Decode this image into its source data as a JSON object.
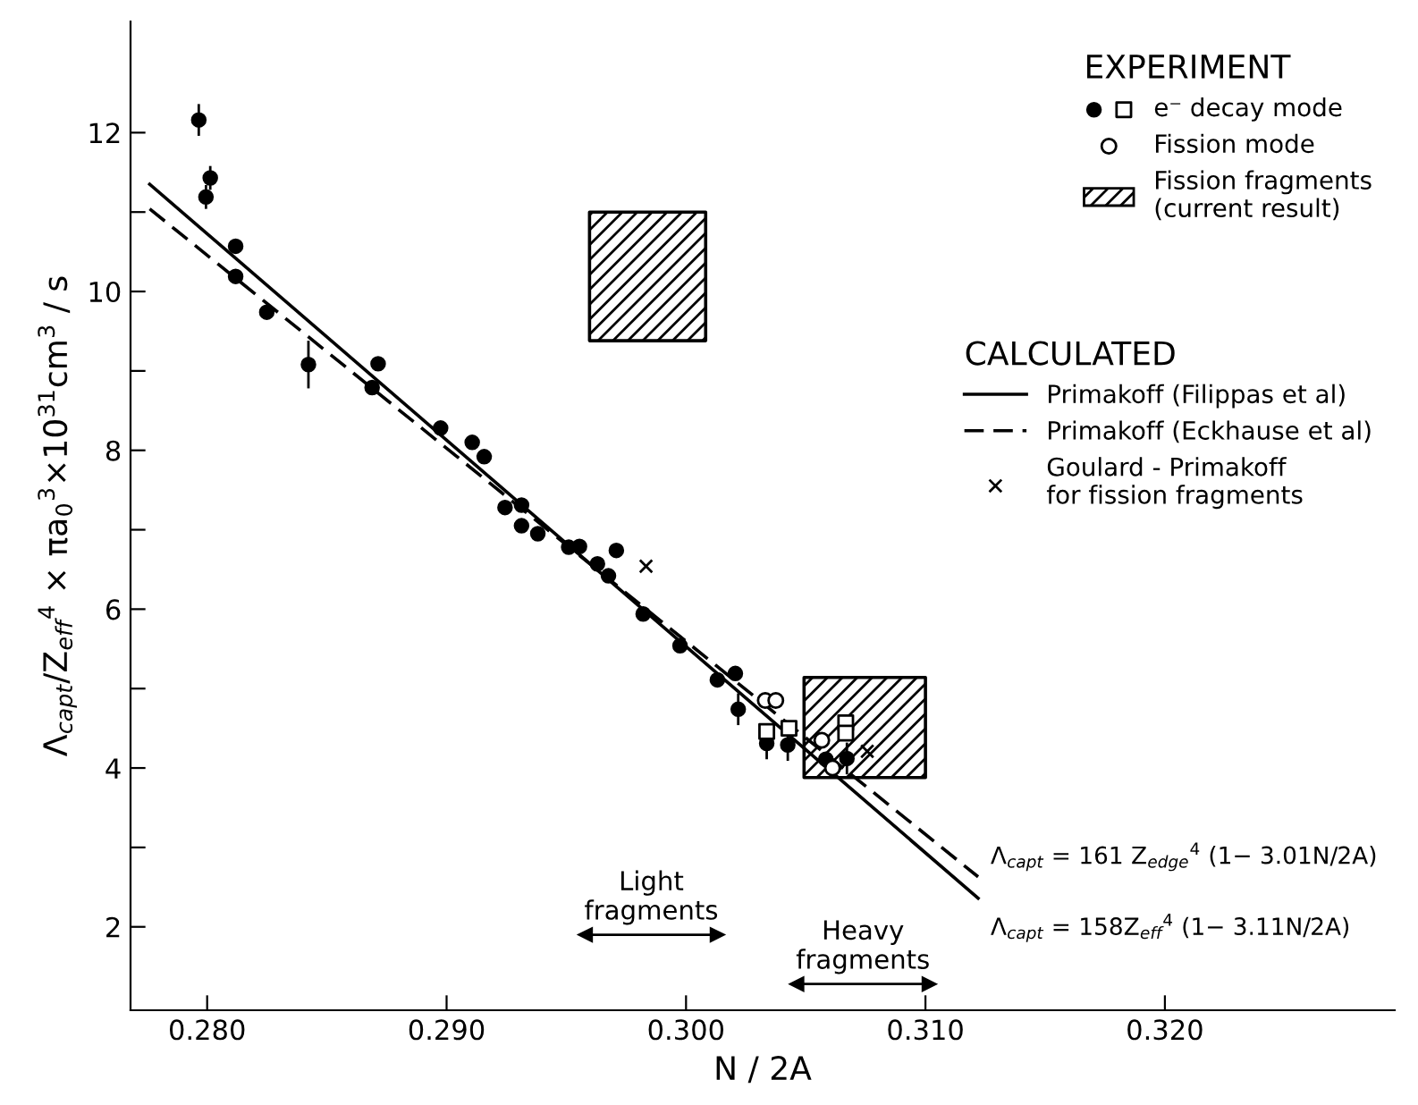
{
  "chart_data": {
    "type": "scatter",
    "xlabel": "N / 2A",
    "ylabel": "Λ$_{capt}$/Z$_{eff}$$^{4}$ × πa$_{0}$$^{3}$×10$^{31}$cm$^{3}$ / s",
    "legend_title": "EXPERIMENT",
    "xlim": [
      0.2768,
      0.3296
    ],
    "ylim": [
      0.95,
      13.4
    ],
    "xticks": [
      {
        "value": 0.28,
        "label": "0.280"
      },
      {
        "value": 0.29,
        "label": "0.290"
      },
      {
        "value": 0.3,
        "label": "0.300"
      },
      {
        "value": 0.31,
        "label": "0.310"
      },
      {
        "value": 0.32,
        "label": "0.320"
      }
    ],
    "yticks": [
      2,
      {
        "value": 3,
        "label": null
      },
      4,
      {
        "value": 5,
        "label": null
      },
      6,
      {
        "value": 7,
        "label": null
      },
      8,
      {
        "value": 9,
        "label": null
      },
      10,
      {
        "value": 11,
        "label": null
      },
      12
    ],
    "grid": false,
    "legend": "top right",
    "series": [
      {
        "marker": "circle",
        "color": "#000000",
        "x": [
          0.27965,
          0.28013,
          0.27995,
          0.28119,
          0.28119,
          0.28249,
          0.28423,
          0.28689,
          0.28714,
          0.28975,
          0.29107,
          0.29157,
          0.29244,
          0.29313,
          0.29313,
          0.29381,
          0.2951,
          0.29555,
          0.2963,
          0.29709,
          0.29676,
          0.29821,
          0.29975,
          0.30131,
          0.30206,
          0.30218,
          0.30337,
          0.30425,
          0.30584,
          0.30672
        ],
        "values": [
          12.16,
          11.43,
          11.19,
          10.57,
          10.19,
          9.74,
          9.08,
          8.79,
          9.09,
          8.28,
          8.1,
          7.92,
          7.28,
          7.31,
          7.05,
          6.95,
          6.78,
          6.79,
          6.57,
          6.74,
          6.42,
          5.94,
          5.54,
          5.11,
          5.19,
          4.74,
          4.31,
          4.29,
          4.11,
          4.12
        ],
        "errors": [
          0.2,
          0.15,
          0.15,
          null,
          null,
          null,
          0.3,
          null,
          null,
          null,
          null,
          null,
          null,
          null,
          null,
          null,
          null,
          null,
          null,
          null,
          null,
          null,
          null,
          null,
          null,
          0.2,
          0.2,
          0.2,
          null,
          0.2
        ]
      },
      {
        "name": "e⁻ decay mode",
        "marker": "square",
        "color": "#000000",
        "x": [
          0.30337,
          0.3043,
          0.30667,
          0.30667
        ],
        "values": [
          4.46,
          4.5,
          4.57,
          4.44
        ]
      },
      {
        "name": "Fission mode",
        "marker": "circle",
        "color": "#000000",
        "x": [
          0.30331,
          0.30375,
          0.30567,
          0.30612
        ],
        "values": [
          4.85,
          4.85,
          4.35,
          4.0
        ]
      },
      {
        "name": "Fission fragments\n(current result)",
        "type": "area",
        "color": "#000000",
        "x": [
          0.29597,
          0.30082
        ],
        "values": [
          null,
          null
        ],
        "lower": [
          9.38,
          9.38
        ],
        "upper": [
          11.0,
          11.0
        ]
      },
      {
        "type": "area",
        "color": "#000000",
        "x": [
          0.30493,
          0.31
        ],
        "values": [
          null,
          null
        ],
        "lower": [
          3.88,
          3.88
        ],
        "upper": [
          5.14,
          5.14
        ]
      },
      {
        "name": "Primakoff (Filippas et al)",
        "type": "line",
        "line_style": "solid",
        "color": "#000000",
        "x": [
          0.2776,
          0.3122
        ],
        "values": [
          11.35,
          2.36
        ]
      },
      {
        "name": "Primakoff (Eckhause et al)",
        "type": "line",
        "line_style": "dashed",
        "color": "#000000",
        "x": [
          0.2776,
          0.3122
        ],
        "values": [
          11.04,
          2.63
        ]
      },
      {
        "type": "line",
        "marker": "triangle",
        "color": "#000000",
        "x": [
          0.2958,
          0.3013
        ],
        "values": [
          1.9,
          1.9
        ]
      },
      {
        "type": "line",
        "marker": "triangle",
        "color": "#000000",
        "x": [
          0.30463,
          0.31015
        ],
        "values": [
          1.28,
          1.28
        ]
      },
      {
        "name": "Goulard - Primakoff\nfor fission fragments",
        "marker": "cross",
        "color": "#000000",
        "x": [
          0.29833,
          0.30757
        ],
        "values": [
          6.54,
          4.21
        ]
      }
    ],
    "annotations": [
      "CALCULATED",
      {
        "text": "Λ$_{capt}$ = 161 Z$_{edge}$$^{4}$ (1− 3.01N/2A)",
        "x": 0.3122,
        "y": 2.63
      },
      {
        "text": "Λ$_{capt}$ = 158Z$_{eff}$$^{4}$ (1− 3.11N/2A)",
        "x": 0.3122,
        "y": 2.36
      },
      {
        "text": "Light\nfragments",
        "x": 0.29855,
        "y": 1.9
      },
      {
        "text": "Heavy\nfragments",
        "x": 0.30739,
        "y": 1.28
      }
    ]
  }
}
